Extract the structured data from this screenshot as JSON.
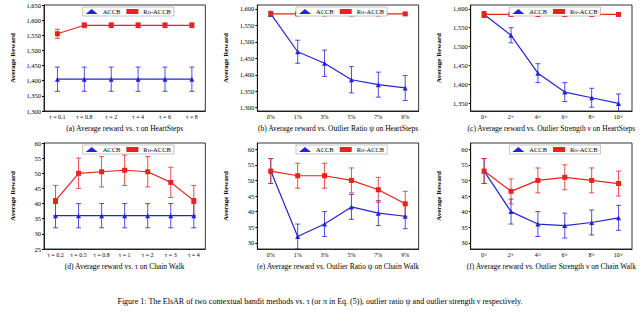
{
  "caption": "Figure 1: The ElsAR of two contextual bandit methods vs. τ (or π in Eq. (5)), outlier ratio ψ and outlier strength ν respectively.",
  "chart_data": [
    {
      "type": "line",
      "title": "(a) Average reward vs. τ on HeartSteps",
      "y_label": "Average Reward",
      "categories": [
        "τ = 0.1",
        "τ = 0.8",
        "τ = 2",
        "τ = 4",
        "τ = 6",
        "τ = 8"
      ],
      "ylim": [
        1300,
        1650
      ],
      "yticks": [
        {
          "value": 1300,
          "label": "1,300"
        },
        {
          "value": 1350,
          "label": "1,350"
        },
        {
          "value": 1400,
          "label": "1,400"
        },
        {
          "value": 1450,
          "label": "1,450"
        },
        {
          "value": 1500,
          "label": "1,500"
        },
        {
          "value": 1550,
          "label": "1,550"
        },
        {
          "value": 1600,
          "label": "1,600"
        },
        {
          "value": 1650,
          "label": "1,650"
        }
      ],
      "grid": false,
      "legend": "top",
      "series": [
        {
          "name": "ACCB",
          "color": "#2323d8",
          "marker": "triangle",
          "values": [
            1405,
            1405,
            1405,
            1405,
            1405,
            1405
          ],
          "errors": [
            40,
            40,
            40,
            40,
            40,
            40
          ]
        },
        {
          "name": "Ro-ACCB",
          "color": "#e8221e",
          "marker": "square",
          "values": [
            1555,
            1583,
            1583,
            1583,
            1583,
            1583
          ],
          "errors": [
            15,
            8,
            8,
            8,
            8,
            8
          ]
        }
      ]
    },
    {
      "type": "line",
      "title": "(b) Average reward vs. Outlier Ratio ψ on HeartSteps",
      "y_label": "Average Reward",
      "categories": [
        "0%",
        "1%",
        "3%",
        "5%",
        "7%",
        "9%"
      ],
      "ylim": [
        1290,
        1612
      ],
      "yticks": [
        {
          "value": 1300,
          "label": "1,300"
        },
        {
          "value": 1350,
          "label": "1,350"
        },
        {
          "value": 1400,
          "label": "1,400"
        },
        {
          "value": 1450,
          "label": "1,450"
        },
        {
          "value": 1500,
          "label": "1,500"
        },
        {
          "value": 1550,
          "label": "1,550"
        },
        {
          "value": 1600,
          "label": "1,600"
        }
      ],
      "grid": false,
      "legend": "top",
      "series": [
        {
          "name": "ACCB",
          "color": "#2323d8",
          "marker": "triangle",
          "values": [
            1585,
            1470,
            1435,
            1385,
            1370,
            1360
          ],
          "errors": [
            8,
            35,
            40,
            40,
            38,
            38
          ]
        },
        {
          "name": "Ro-ACCB",
          "color": "#e8221e",
          "marker": "square",
          "values": [
            1585,
            1585,
            1585,
            1585,
            1585,
            1585
          ],
          "errors": [
            4,
            4,
            4,
            4,
            4,
            4
          ]
        }
      ]
    },
    {
      "type": "line",
      "title": "(c) Average reward vs. Outlier Strength ν on HeartSteps",
      "y_label": "Average Reward",
      "categories": [
        "0×",
        "2×",
        "4×",
        "6×",
        "8×",
        "10×"
      ],
      "ylim": [
        1330,
        1610
      ],
      "yticks": [
        {
          "value": 1350,
          "label": "1,350"
        },
        {
          "value": 1400,
          "label": "1,400"
        },
        {
          "value": 1450,
          "label": "1,450"
        },
        {
          "value": 1500,
          "label": "1,500"
        },
        {
          "value": 1550,
          "label": "1,550"
        },
        {
          "value": 1600,
          "label": "1,600"
        }
      ],
      "grid": false,
      "legend": "top",
      "series": [
        {
          "name": "ACCB",
          "color": "#2323d8",
          "marker": "triangle",
          "values": [
            1585,
            1530,
            1430,
            1380,
            1365,
            1350
          ],
          "errors": [
            8,
            20,
            25,
            25,
            25,
            25
          ]
        },
        {
          "name": "Ro-ACCB",
          "color": "#e8221e",
          "marker": "square",
          "values": [
            1585,
            1585,
            1585,
            1585,
            1585,
            1585
          ],
          "errors": [
            3,
            3,
            3,
            3,
            3,
            3
          ]
        }
      ]
    },
    {
      "type": "line",
      "title": "(d) Average reward vs. τ on Chain Walk",
      "y_label": "Average Reward",
      "categories": [
        "τ = 0.2",
        "τ = 0.5",
        "τ = 0.8",
        "τ = 1",
        "τ = 2",
        "τ = 3",
        "τ = 4"
      ],
      "ylim": [
        25,
        60
      ],
      "yticks": [
        25,
        30,
        35,
        40,
        45,
        50,
        55,
        60
      ],
      "grid": false,
      "legend": "top",
      "series": [
        {
          "name": "ACCB",
          "color": "#2323d8",
          "marker": "triangle",
          "values": [
            36,
            36,
            36,
            36,
            36,
            36,
            36
          ],
          "errors": [
            4,
            4,
            4,
            4,
            4,
            4,
            4
          ]
        },
        {
          "name": "Ro-ACCB",
          "color": "#e8221e",
          "marker": "square",
          "values": [
            41,
            50,
            50.5,
            51,
            50.5,
            47,
            41
          ],
          "errors": [
            5,
            5,
            5,
            5,
            5,
            5,
            5
          ]
        }
      ]
    },
    {
      "type": "line",
      "title": "(e) Average reward vs. Outlier Ratio ψ on Chain Walk",
      "y_label": "Average Reward",
      "categories": [
        "0%",
        "1%",
        "3%",
        "5%",
        "7%",
        "9%"
      ],
      "ylim": [
        28,
        62
      ],
      "yticks": [
        30,
        35,
        40,
        45,
        50,
        55,
        60
      ],
      "grid": false,
      "legend": "top",
      "series": [
        {
          "name": "ACCB",
          "color": "#2323d8",
          "marker": "triangle",
          "values": [
            53,
            32,
            36,
            41.5,
            39.5,
            38.5
          ],
          "errors": [
            4,
            4,
            4,
            4,
            4,
            4
          ]
        },
        {
          "name": "Ro-ACCB",
          "color": "#e8221e",
          "marker": "square",
          "values": [
            53,
            51.5,
            51.5,
            50,
            47,
            42.5
          ],
          "errors": [
            4,
            4,
            4,
            4,
            4,
            4
          ]
        }
      ]
    },
    {
      "type": "line",
      "title": "(f) Average reward vs. Outlier Strength ν on Chain Walk",
      "y_label": "Average Reward",
      "categories": [
        "0×",
        "2×",
        "4×",
        "6×",
        "8×",
        "10×"
      ],
      "ylim": [
        28,
        62
      ],
      "yticks": [
        30,
        35,
        40,
        45,
        50,
        55,
        60
      ],
      "grid": false,
      "legend": "top",
      "series": [
        {
          "name": "ACCB",
          "color": "#2323d8",
          "marker": "triangle",
          "values": [
            53,
            40,
            36,
            35.5,
            36.5,
            38
          ],
          "errors": [
            4,
            4,
            4,
            4,
            4,
            4
          ]
        },
        {
          "name": "Ro-ACCB",
          "color": "#e8221e",
          "marker": "square",
          "values": [
            53,
            46.5,
            50,
            51,
            50,
            49
          ],
          "errors": [
            4,
            4,
            4,
            4,
            4,
            4
          ]
        }
      ]
    }
  ]
}
